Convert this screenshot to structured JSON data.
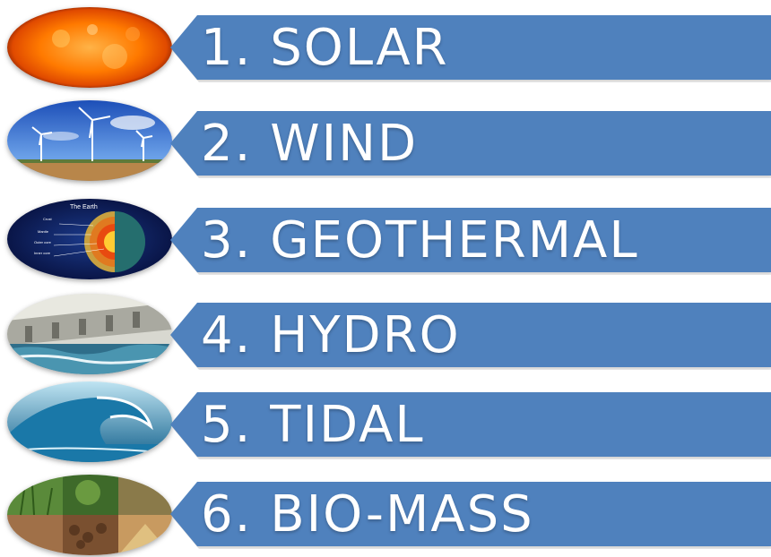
{
  "items": [
    {
      "label": "1. SOLAR",
      "icon": "sun-image"
    },
    {
      "label": "2. WIND",
      "icon": "wind-turbines-image"
    },
    {
      "label": "3. GEOTHERMAL",
      "icon": "earth-layers-image"
    },
    {
      "label": "4. HYDRO",
      "icon": "dam-image"
    },
    {
      "label": "5. TIDAL",
      "icon": "wave-image"
    },
    {
      "label": "6. BIO-MASS",
      "icon": "biomass-collage-image"
    }
  ],
  "earth_diagram": {
    "title": "The Earth",
    "layers": [
      "Crust",
      "Mantle",
      "Outer core",
      "Inner core"
    ]
  },
  "colors": {
    "banner": "#4f81bd",
    "text": "#ffffff"
  }
}
